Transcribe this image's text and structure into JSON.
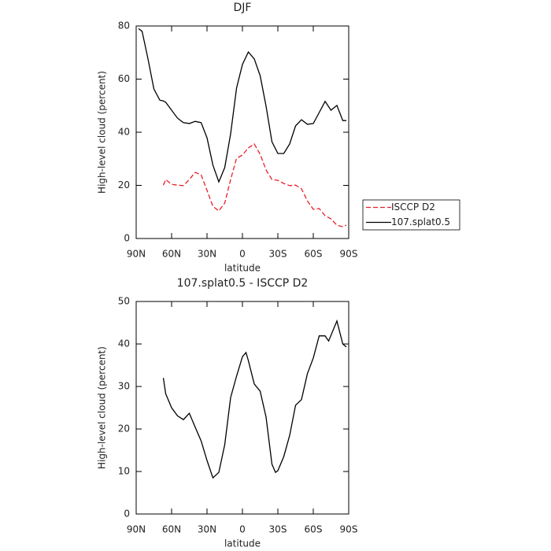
{
  "chart_data": [
    {
      "type": "line",
      "title": "DJF",
      "xlabel": "latitude",
      "ylabel": "High-level cloud (percent)",
      "x": [
        88,
        85,
        80,
        75,
        70,
        67,
        65,
        60,
        55,
        50,
        45,
        40,
        35,
        30,
        25,
        20,
        15,
        10,
        5,
        0,
        -5,
        -10,
        -15,
        -20,
        -25,
        -30,
        -35,
        -40,
        -45,
        -50,
        -55,
        -60,
        -65,
        -70,
        -75,
        -80,
        -85,
        -88
      ],
      "series": [
        {
          "name": "ISCCP D2",
          "color": "#e8202a",
          "dashed": true,
          "values": [
            null,
            null,
            null,
            null,
            null,
            20.1,
            22.2,
            20.4,
            20.1,
            19.9,
            22.2,
            24.9,
            24,
            18.1,
            12.1,
            10.4,
            13.3,
            22.2,
            30.2,
            31.4,
            34.1,
            35.6,
            31.7,
            25.8,
            22.2,
            21.9,
            20.7,
            19.9,
            20.1,
            18.7,
            14.2,
            11,
            11.3,
            8.6,
            7.4,
            5,
            4.4,
            5
          ]
        },
        {
          "name": "107.splat0.5",
          "color": "#000000",
          "dashed": false,
          "values": [
            79,
            78,
            67.6,
            56.3,
            52.1,
            51.8,
            51.3,
            48.3,
            45.3,
            43.6,
            43.3,
            44.1,
            43.6,
            37.9,
            27.6,
            21.3,
            26.7,
            39.4,
            56.6,
            65.5,
            70.2,
            67.6,
            61.3,
            49.8,
            36.4,
            32,
            32,
            35.6,
            42.4,
            44.7,
            43,
            43.3,
            47.4,
            51.6,
            48.3,
            50.1,
            44.4,
            44.4
          ]
        }
      ],
      "xlim": [
        90,
        -90
      ],
      "xticks": [
        {
          "value": 90,
          "label": "90N"
        },
        {
          "value": 60,
          "label": "60N"
        },
        {
          "value": 30,
          "label": "30N"
        },
        0,
        {
          "value": -30,
          "label": "30S"
        },
        {
          "value": -60,
          "label": "60S"
        },
        {
          "value": -90,
          "label": "90S"
        }
      ],
      "ylim": [
        0,
        80
      ],
      "yticks": [
        0,
        20,
        40,
        60,
        80
      ],
      "legend": "right"
    },
    {
      "type": "line",
      "title": "107.splat0.5 - ISCCP D2",
      "xlabel": "latitude",
      "ylabel": "High-level cloud (percent)",
      "x": [
        67,
        65,
        60,
        55,
        50,
        45,
        40,
        35,
        30,
        25,
        20,
        15,
        10,
        5,
        0,
        -3,
        -5,
        -10,
        -15,
        -20,
        -25,
        -28,
        -30,
        -35,
        -40,
        -45,
        -50,
        -55,
        -60,
        -65,
        -70,
        -73,
        -80,
        -85,
        -88
      ],
      "series": [
        {
          "color": "#000000",
          "dashed": false,
          "values": [
            32,
            28.3,
            25,
            23.1,
            22.2,
            23.7,
            20.4,
            17.2,
            12.6,
            8.5,
            9.8,
            16.3,
            27.4,
            32.4,
            37,
            38,
            36.1,
            30.6,
            28.9,
            22.8,
            11.7,
            9.8,
            10.2,
            13.5,
            18.5,
            25.6,
            26.9,
            33,
            36.7,
            41.9,
            41.9,
            40.7,
            45.4,
            40,
            39.3
          ]
        }
      ],
      "xlim": [
        90,
        -90
      ],
      "xticks": [
        {
          "value": 90,
          "label": "90N"
        },
        {
          "value": 60,
          "label": "60N"
        },
        {
          "value": 30,
          "label": "30N"
        },
        0,
        {
          "value": -30,
          "label": "30S"
        },
        {
          "value": -60,
          "label": "60S"
        },
        {
          "value": -90,
          "label": "90S"
        }
      ],
      "ylim": [
        0,
        50
      ],
      "yticks": [
        0,
        10,
        20,
        30,
        40,
        50
      ]
    }
  ]
}
